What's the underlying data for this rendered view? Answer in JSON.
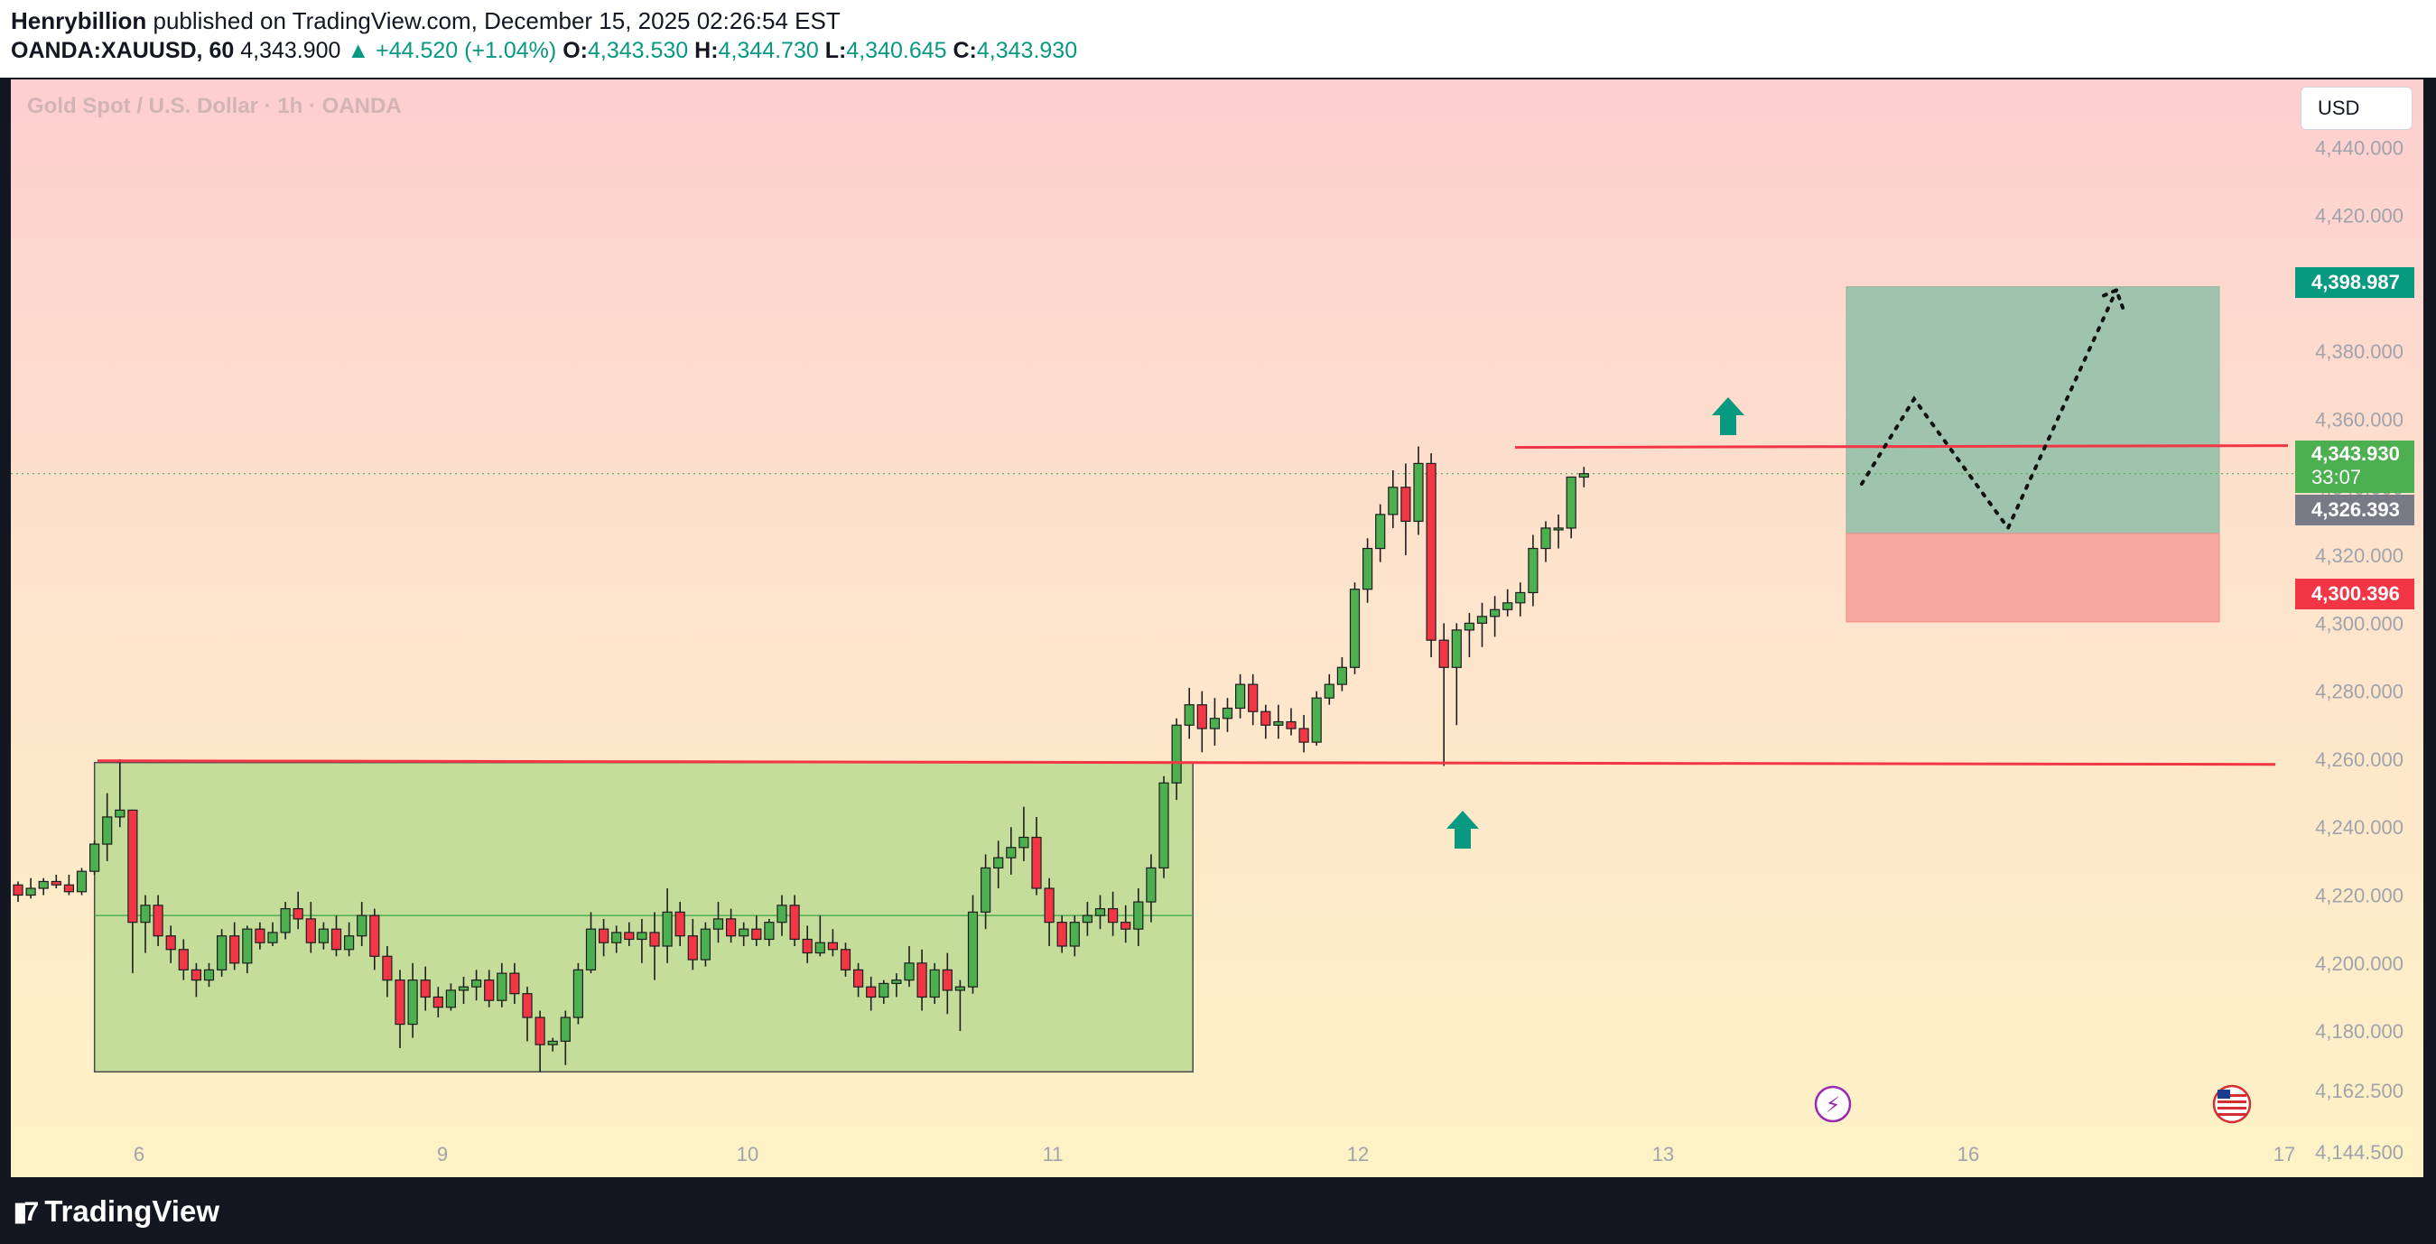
{
  "header": {
    "author": "Henrybillion",
    "published_text": "published on TradingView.com, December 15, 2025 02:26:54 EST",
    "symbol": "OANDA:XAUUSD, 60",
    "last_price": "4,343.900",
    "change": "+44.520 (+1.04%)",
    "open_label": "O:",
    "open": "4,343.530",
    "high_label": "H:",
    "high": "4,344.730",
    "low_label": "L:",
    "low": "4,340.645",
    "close_label": "C:",
    "close": "4,343.930"
  },
  "chart_title": "Gold Spot / U.S. Dollar · 1h · OANDA",
  "currency": "USD",
  "price_tags": {
    "target": "4,398.987",
    "current": "4,343.930",
    "countdown": "33:07",
    "entry": "4,326.393",
    "stop": "4,300.396"
  },
  "brand": "TradingView",
  "colors": {
    "up": "#4caf50",
    "down": "#f23645",
    "accent": "#089981",
    "resistance_line": "#f23645",
    "range_box": "#c5dd9a",
    "profit_zone": "#9fc3ad",
    "loss_zone": "#f8a8a0"
  },
  "chart_data": {
    "type": "candlestick",
    "interval": "1h",
    "x_ticks": [
      "6",
      "9",
      "10",
      "11",
      "12",
      "13",
      "16",
      "17"
    ],
    "y_ticks": [
      "4,440.000",
      "4,420.000",
      "4,400.000",
      "4,380.000",
      "4,360.000",
      "4,340.000",
      "4,320.000",
      "4,300.000",
      "4,280.000",
      "4,260.000",
      "4,240.000",
      "4,220.000",
      "4,200.000",
      "4,180.000",
      "4,162.500",
      "4,144.500"
    ],
    "ylim": [
      4137,
      4460
    ],
    "candles": [
      [
        4223,
        4224,
        4218,
        4220
      ],
      [
        4220,
        4225,
        4219,
        4222
      ],
      [
        4222,
        4225,
        4220,
        4224
      ],
      [
        4224,
        4226,
        4222,
        4223
      ],
      [
        4223,
        4226,
        4220,
        4221
      ],
      [
        4221,
        4228,
        4220,
        4227
      ],
      [
        4227,
        4236,
        4226,
        4235
      ],
      [
        4235,
        4250,
        4230,
        4243
      ],
      [
        4243,
        4260,
        4240,
        4245
      ],
      [
        4245,
        4245,
        4197,
        4212
      ],
      [
        4212,
        4220,
        4203,
        4217
      ],
      [
        4217,
        4220,
        4205,
        4208
      ],
      [
        4208,
        4211,
        4200,
        4204
      ],
      [
        4204,
        4207,
        4195,
        4198
      ],
      [
        4198,
        4200,
        4190,
        4195
      ],
      [
        4195,
        4200,
        4193,
        4198
      ],
      [
        4198,
        4210,
        4196,
        4208
      ],
      [
        4208,
        4212,
        4198,
        4200
      ],
      [
        4200,
        4211,
        4197,
        4210
      ],
      [
        4210,
        4212,
        4204,
        4206
      ],
      [
        4206,
        4212,
        4205,
        4209
      ],
      [
        4209,
        4218,
        4207,
        4216
      ],
      [
        4216,
        4221,
        4210,
        4213
      ],
      [
        4213,
        4218,
        4203,
        4206
      ],
      [
        4206,
        4212,
        4204,
        4210
      ],
      [
        4210,
        4214,
        4202,
        4204
      ],
      [
        4204,
        4212,
        4202,
        4208
      ],
      [
        4208,
        4218,
        4205,
        4214
      ],
      [
        4214,
        4216,
        4198,
        4202
      ],
      [
        4202,
        4205,
        4190,
        4195
      ],
      [
        4195,
        4198,
        4175,
        4182
      ],
      [
        4182,
        4200,
        4178,
        4195
      ],
      [
        4195,
        4199,
        4186,
        4190
      ],
      [
        4190,
        4193,
        4184,
        4187
      ],
      [
        4187,
        4194,
        4186,
        4192
      ],
      [
        4192,
        4196,
        4188,
        4193
      ],
      [
        4193,
        4198,
        4189,
        4195
      ],
      [
        4195,
        4198,
        4187,
        4189
      ],
      [
        4189,
        4200,
        4187,
        4197
      ],
      [
        4197,
        4200,
        4188,
        4191
      ],
      [
        4191,
        4193,
        4177,
        4184
      ],
      [
        4184,
        4186,
        4168,
        4176
      ],
      [
        4176,
        4178,
        4174,
        4177
      ],
      [
        4177,
        4186,
        4170,
        4184
      ],
      [
        4184,
        4200,
        4182,
        4198
      ],
      [
        4198,
        4215,
        4197,
        4210
      ],
      [
        4210,
        4213,
        4202,
        4206
      ],
      [
        4206,
        4211,
        4203,
        4209
      ],
      [
        4209,
        4212,
        4205,
        4207
      ],
      [
        4207,
        4213,
        4200,
        4209
      ],
      [
        4209,
        4215,
        4195,
        4205
      ],
      [
        4205,
        4222,
        4200,
        4215
      ],
      [
        4215,
        4218,
        4205,
        4208
      ],
      [
        4208,
        4213,
        4198,
        4201
      ],
      [
        4201,
        4212,
        4199,
        4210
      ],
      [
        4210,
        4218,
        4206,
        4213
      ],
      [
        4213,
        4216,
        4206,
        4208
      ],
      [
        4208,
        4212,
        4205,
        4210
      ],
      [
        4210,
        4214,
        4205,
        4207
      ],
      [
        4207,
        4213,
        4205,
        4212
      ],
      [
        4212,
        4220,
        4208,
        4217
      ],
      [
        4217,
        4220,
        4205,
        4207
      ],
      [
        4207,
        4211,
        4200,
        4203
      ],
      [
        4203,
        4214,
        4202,
        4206
      ],
      [
        4206,
        4210,
        4202,
        4204
      ],
      [
        4204,
        4206,
        4196,
        4198
      ],
      [
        4198,
        4200,
        4190,
        4193
      ],
      [
        4193,
        4196,
        4186,
        4190
      ],
      [
        4190,
        4195,
        4188,
        4194
      ],
      [
        4194,
        4197,
        4190,
        4195
      ],
      [
        4195,
        4205,
        4193,
        4200
      ],
      [
        4200,
        4204,
        4186,
        4190
      ],
      [
        4190,
        4200,
        4188,
        4198
      ],
      [
        4198,
        4203,
        4185,
        4192
      ],
      [
        4192,
        4195,
        4180,
        4193
      ],
      [
        4193,
        4220,
        4191,
        4215
      ],
      [
        4215,
        4232,
        4210,
        4228
      ],
      [
        4228,
        4236,
        4222,
        4231
      ],
      [
        4231,
        4240,
        4226,
        4234
      ],
      [
        4234,
        4246,
        4230,
        4237
      ],
      [
        4237,
        4243,
        4220,
        4222
      ],
      [
        4222,
        4225,
        4205,
        4212
      ],
      [
        4212,
        4214,
        4203,
        4205
      ],
      [
        4205,
        4214,
        4202,
        4212
      ],
      [
        4212,
        4218,
        4208,
        4214
      ],
      [
        4214,
        4220,
        4210,
        4216
      ],
      [
        4216,
        4221,
        4208,
        4212
      ],
      [
        4212,
        4217,
        4206,
        4210
      ],
      [
        4210,
        4222,
        4205,
        4218
      ],
      [
        4218,
        4232,
        4212,
        4228
      ],
      [
        4228,
        4255,
        4225,
        4253
      ],
      [
        4253,
        4272,
        4248,
        4270
      ],
      [
        4270,
        4281,
        4266,
        4276
      ],
      [
        4276,
        4280,
        4262,
        4269
      ],
      [
        4269,
        4278,
        4264,
        4272
      ],
      [
        4272,
        4278,
        4268,
        4275
      ],
      [
        4275,
        4285,
        4272,
        4282
      ],
      [
        4282,
        4285,
        4270,
        4274
      ],
      [
        4274,
        4276,
        4266,
        4270
      ],
      [
        4270,
        4276,
        4266,
        4271
      ],
      [
        4271,
        4275,
        4267,
        4269
      ],
      [
        4269,
        4273,
        4262,
        4265
      ],
      [
        4265,
        4280,
        4264,
        4278
      ],
      [
        4278,
        4285,
        4276,
        4282
      ],
      [
        4282,
        4290,
        4280,
        4287
      ],
      [
        4287,
        4312,
        4285,
        4310
      ],
      [
        4310,
        4325,
        4306,
        4322
      ],
      [
        4322,
        4335,
        4318,
        4332
      ],
      [
        4332,
        4345,
        4328,
        4340
      ],
      [
        4340,
        4347,
        4320,
        4330
      ],
      [
        4330,
        4352,
        4326,
        4347
      ],
      [
        4347,
        4350,
        4290,
        4295
      ],
      [
        4295,
        4300,
        4258,
        4287
      ],
      [
        4287,
        4300,
        4270,
        4298
      ],
      [
        4298,
        4303,
        4290,
        4300
      ],
      [
        4300,
        4306,
        4293,
        4302
      ],
      [
        4302,
        4308,
        4296,
        4304
      ],
      [
        4304,
        4310,
        4302,
        4306
      ],
      [
        4306,
        4312,
        4302,
        4309
      ],
      [
        4309,
        4326,
        4305,
        4322
      ],
      [
        4322,
        4330,
        4318,
        4328
      ],
      [
        4328,
        4332,
        4322,
        4328
      ],
      [
        4328,
        4342,
        4325,
        4343
      ],
      [
        4343,
        4346,
        4340,
        4344
      ]
    ],
    "range_box": {
      "from_candle": 7,
      "to_candle": 92,
      "low": 4168,
      "high": 4259,
      "mid": 4214
    },
    "resistance_level": 4259,
    "upper_level": 4352,
    "position": {
      "entry": 4326.393,
      "target": 4398.987,
      "stop": 4300.396
    },
    "projection_path": [
      [
        4341
      ],
      [
        4366
      ],
      [
        4328
      ],
      [
        4398
      ]
    ]
  }
}
